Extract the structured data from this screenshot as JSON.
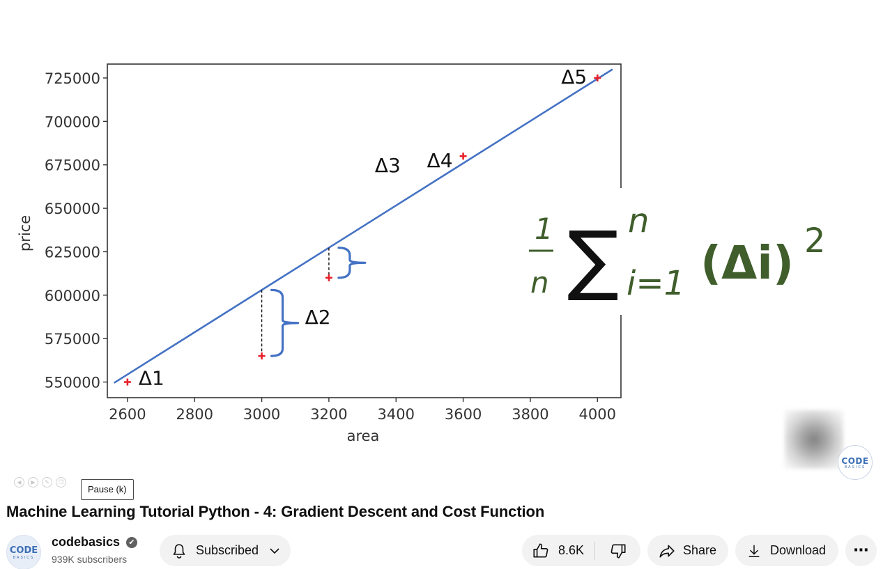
{
  "video": {
    "title": "Machine Learning Tutorial Python - 4: Gradient Descent and Cost Function",
    "tooltip": "Pause (k)"
  },
  "slide": {
    "formula": {
      "numerator": "1",
      "denominator": "n",
      "sum_symbol": "∑",
      "upper": "n",
      "lower": "i=1",
      "term": "(Δi)",
      "power": "2"
    },
    "brand_logo": {
      "line1": "CODE",
      "line2": "BASICS"
    },
    "formula_color": "#3f5e2b",
    "line_color": "#4472c4",
    "point_color": "#e8212b",
    "chart_data": {
      "type": "scatter",
      "title": "",
      "xlabel": "area",
      "ylabel": "price",
      "xlim": [
        2540,
        4070
      ],
      "ylim": [
        541000,
        733000
      ],
      "xticks": [
        2600,
        2800,
        3000,
        3200,
        3400,
        3600,
        3800,
        4000
      ],
      "yticks": [
        550000,
        575000,
        600000,
        625000,
        650000,
        675000,
        700000,
        725000
      ],
      "points": [
        {
          "x": 2600,
          "y": 550000
        },
        {
          "x": 3000,
          "y": 565000
        },
        {
          "x": 3200,
          "y": 610000
        },
        {
          "x": 3600,
          "y": 680000
        },
        {
          "x": 4000,
          "y": 725000
        }
      ],
      "fit_line": [
        {
          "x": 2560,
          "y": 549500
        },
        {
          "x": 4045,
          "y": 730000
        }
      ],
      "annotations": [
        {
          "label": "Δ1",
          "point": 0
        },
        {
          "label": "Δ2",
          "point": 1
        },
        {
          "label": "Δ3",
          "point": 2
        },
        {
          "label": "Δ4",
          "point": 3
        },
        {
          "label": "Δ5",
          "point": 4
        }
      ]
    }
  },
  "channel": {
    "name": "codebasics",
    "verified_icon": "✔",
    "subscribers": "939K subscribers",
    "avatar": {
      "line1": "CODE",
      "line2": "BASICS"
    }
  },
  "actions": {
    "subscribe_label": "Subscribed",
    "like_count": "8.6K",
    "share_label": "Share",
    "download_label": "Download",
    "more_icon": "⋯"
  }
}
